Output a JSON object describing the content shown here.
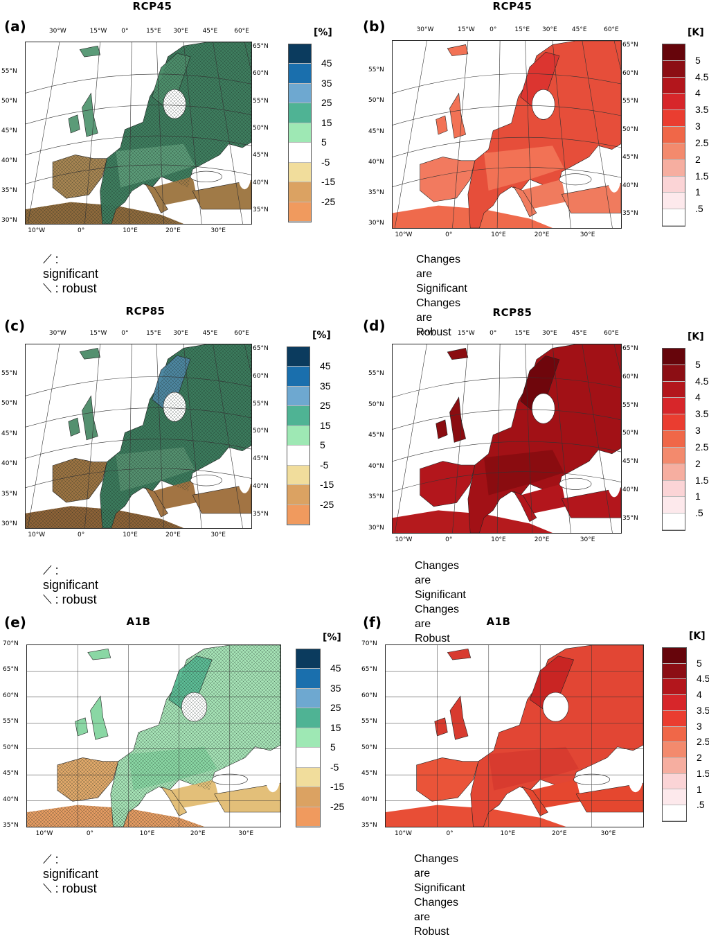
{
  "panels": {
    "a": {
      "label": "(a)",
      "title": "RCP45"
    },
    "b": {
      "label": "(b)",
      "title": "RCP45"
    },
    "c": {
      "label": "(c)",
      "title": "RCP85"
    },
    "d": {
      "label": "(d)",
      "title": "RCP85"
    },
    "e": {
      "label": "(e)",
      "title": "A1B"
    },
    "f": {
      "label": "(f)",
      "title": "A1B"
    }
  },
  "precip_colorbar": {
    "unit": "[%]",
    "labels": [
      "45",
      "35",
      "25",
      "15",
      "5",
      "-5",
      "-15",
      "-25"
    ],
    "colors": [
      "#0b3b5e",
      "#1a6fad",
      "#6ea8d0",
      "#4fb394",
      "#9ee8b4",
      "#ffffff",
      "#f1dd9c",
      "#dba262",
      "#f09a5e"
    ]
  },
  "temp_colorbar": {
    "unit": "[K]",
    "labels": [
      "5",
      "4.5",
      "4",
      "3.5",
      "3",
      "2.5",
      "2",
      "1.5",
      "1",
      ".5"
    ],
    "colors": [
      "#66050b",
      "#8c0e14",
      "#b3161c",
      "#d7262a",
      "#ea3d30",
      "#f06748",
      "#f38a6d",
      "#f6aea0",
      "#fbd4d6",
      "#fde9ec",
      "#ffffff"
    ]
  },
  "rotated_axes": {
    "top": [
      "30°W",
      "15°W",
      "0°",
      "15°E",
      "30°E",
      "45°E",
      "60°E"
    ],
    "right": [
      "65°N",
      "60°N",
      "55°N",
      "50°N",
      "45°N",
      "40°N",
      "35°N"
    ],
    "left": [
      "55°N",
      "50°N",
      "45°N",
      "40°N",
      "35°N",
      "30°N"
    ],
    "bottom": [
      "10°W",
      "0°",
      "10°E",
      "20°E",
      "30°E"
    ]
  },
  "regular_axes": {
    "left": [
      "70°N",
      "65°N",
      "60°N",
      "55°N",
      "50°N",
      "45°N",
      "40°N",
      "35°N"
    ],
    "bottom": [
      "10°W",
      "0°",
      "10°E",
      "20°E",
      "30°E"
    ]
  },
  "legend": {
    "significant": "⟋ : significant",
    "robust": "⟍ : robust"
  },
  "notes": {
    "significant": "Changes are Significant",
    "robust": "Changes are Robust"
  }
}
